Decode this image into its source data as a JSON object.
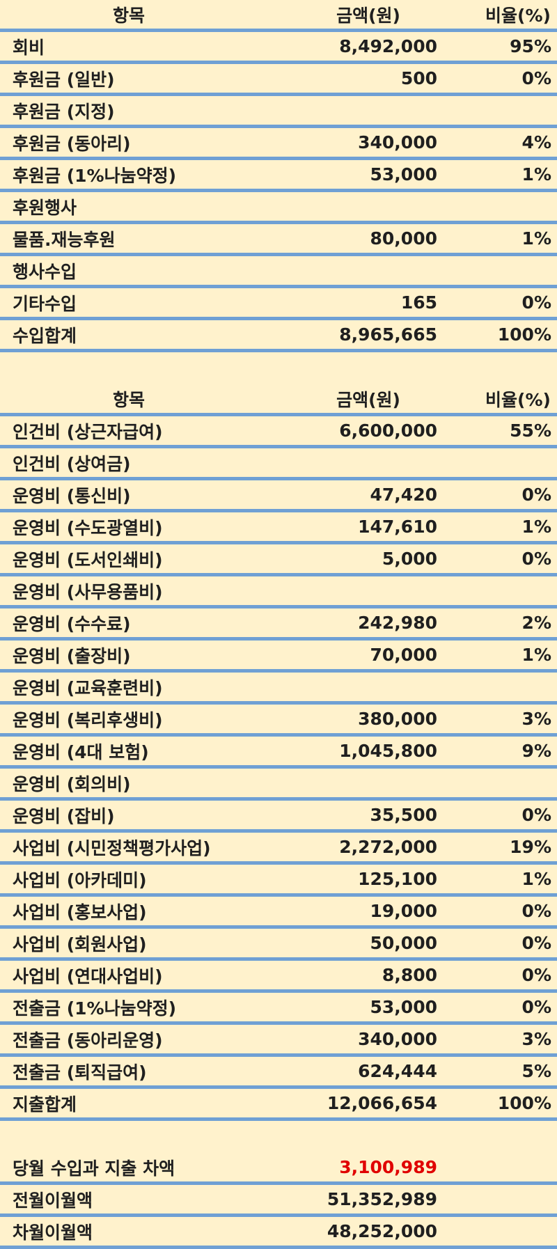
{
  "income": {
    "header": {
      "item": "항목",
      "amount": "금액(원)",
      "ratio": "비율(%)"
    },
    "rows": [
      {
        "item": "회비",
        "amount": "8,492,000",
        "ratio": "95%"
      },
      {
        "item": "후원금 (일반)",
        "amount": "500",
        "ratio": "0%"
      },
      {
        "item": "후원금 (지정)",
        "amount": "",
        "ratio": ""
      },
      {
        "item": "후원금 (동아리)",
        "amount": "340,000",
        "ratio": "4%"
      },
      {
        "item": "후원금 (1%나눔약정)",
        "amount": "53,000",
        "ratio": "1%"
      },
      {
        "item": "후원행사",
        "amount": "",
        "ratio": ""
      },
      {
        "item": "물품.재능후원",
        "amount": "80,000",
        "ratio": "1%"
      },
      {
        "item": "행사수입",
        "amount": "",
        "ratio": ""
      },
      {
        "item": "기타수입",
        "amount": "165",
        "ratio": "0%"
      },
      {
        "item": "수입합계",
        "amount": "8,965,665",
        "ratio": "100%"
      }
    ]
  },
  "expense": {
    "header": {
      "item": "항목",
      "amount": "금액(원)",
      "ratio": "비율(%)"
    },
    "rows": [
      {
        "item": "인건비 (상근자급여)",
        "amount": "6,600,000",
        "ratio": "55%"
      },
      {
        "item": "인건비 (상여금)",
        "amount": "",
        "ratio": ""
      },
      {
        "item": "운영비 (통신비)",
        "amount": "47,420",
        "ratio": "0%"
      },
      {
        "item": "운영비 (수도광열비)",
        "amount": "147,610",
        "ratio": "1%"
      },
      {
        "item": "운영비 (도서인쇄비)",
        "amount": "5,000",
        "ratio": "0%"
      },
      {
        "item": "운영비 (사무용품비)",
        "amount": "",
        "ratio": ""
      },
      {
        "item": "운영비 (수수료)",
        "amount": "242,980",
        "ratio": "2%"
      },
      {
        "item": "운영비 (출장비)",
        "amount": "70,000",
        "ratio": "1%"
      },
      {
        "item": "운영비 (교육훈련비)",
        "amount": "",
        "ratio": ""
      },
      {
        "item": "운영비 (복리후생비)",
        "amount": "380,000",
        "ratio": "3%"
      },
      {
        "item": "운영비 (4대 보험)",
        "amount": "1,045,800",
        "ratio": "9%"
      },
      {
        "item": "운영비 (회의비)",
        "amount": "",
        "ratio": ""
      },
      {
        "item": "운영비 (잡비)",
        "amount": "35,500",
        "ratio": "0%"
      },
      {
        "item": "사업비 (시민정책평가사업)",
        "amount": "2,272,000",
        "ratio": "19%"
      },
      {
        "item": "사업비 (아카데미)",
        "amount": "125,100",
        "ratio": "1%"
      },
      {
        "item": "사업비 (홍보사업)",
        "amount": "19,000",
        "ratio": "0%"
      },
      {
        "item": "사업비 (회원사업)",
        "amount": "50,000",
        "ratio": "0%"
      },
      {
        "item": "사업비 (연대사업비)",
        "amount": "8,800",
        "ratio": "0%"
      },
      {
        "item": "전출금 (1%나눔약정)",
        "amount": "53,000",
        "ratio": "0%"
      },
      {
        "item": "전출금 (동아리운영)",
        "amount": "340,000",
        "ratio": "3%"
      },
      {
        "item": "전출금 (퇴직급여)",
        "amount": "624,444",
        "ratio": "5%"
      },
      {
        "item": "지출합계",
        "amount": "12,066,654",
        "ratio": "100%"
      }
    ]
  },
  "balance": {
    "rows": [
      {
        "item": "당월 수입과 지출 차액",
        "amount": "3,100,989",
        "highlight": "#e00000"
      },
      {
        "item": "전월이월액",
        "amount": "51,352,989"
      },
      {
        "item": "차월이월액",
        "amount": "48,252,000"
      }
    ]
  }
}
